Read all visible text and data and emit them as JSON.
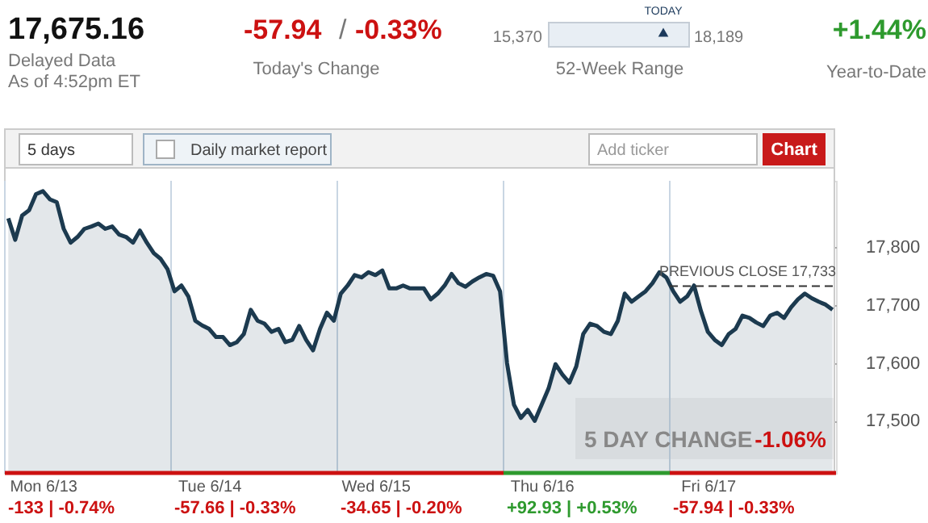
{
  "chart_data": {
    "type": "area",
    "categories": [
      null,
      null,
      null,
      null,
      null,
      "Mon 6/13",
      null,
      null,
      null,
      null,
      null,
      null,
      null,
      null,
      null,
      null,
      null,
      null,
      null,
      null,
      null,
      null,
      null,
      null,
      null,
      null,
      null,
      null,
      null,
      "Tue 6/14",
      null,
      null,
      null,
      null,
      null,
      null,
      null,
      null,
      null,
      null,
      null,
      null,
      null,
      null,
      null,
      null,
      null,
      null,
      null,
      null,
      null,
      null,
      null,
      "Wed 6/15",
      null,
      null,
      null,
      null,
      null,
      null,
      null,
      null,
      null,
      null,
      null,
      null,
      null,
      null,
      null,
      null,
      null,
      null,
      null,
      null,
      null,
      null,
      null,
      "Thu 6/16",
      null,
      null,
      null,
      null,
      null,
      null,
      null,
      null,
      null,
      null,
      null,
      null,
      null,
      null,
      null,
      null,
      null,
      null,
      null,
      null,
      null,
      null,
      null,
      "Fri 6/17",
      null,
      null,
      null,
      null,
      null,
      null,
      null,
      null,
      null,
      null,
      null,
      null,
      null,
      null,
      null,
      null,
      null,
      null
    ],
    "series": [
      {
        "color": "#1c3a4f",
        "values": [
          17850,
          17813,
          17855,
          17864,
          17892,
          17897,
          17883,
          17878,
          17832,
          17808,
          17818,
          17832,
          17836,
          17841,
          17832,
          17836,
          17822,
          17818,
          17808,
          17829,
          17808,
          17790,
          17780,
          17762,
          17724,
          17734,
          17715,
          17673,
          17665,
          17659,
          17645,
          17645,
          17631,
          17636,
          17650,
          17692,
          17673,
          17668,
          17654,
          17659,
          17636,
          17640,
          17664,
          17640,
          17622,
          17659,
          17687,
          17673,
          17720,
          17734,
          17752,
          17748,
          17757,
          17752,
          17760,
          17729,
          17729,
          17734,
          17729,
          17729,
          17729,
          17710,
          17720,
          17734,
          17754,
          17738,
          17732,
          17741,
          17748,
          17754,
          17751,
          17724,
          17600,
          17528,
          17505,
          17519,
          17500,
          17528,
          17556,
          17598,
          17580,
          17566,
          17594,
          17650,
          17668,
          17664,
          17654,
          17650,
          17673,
          17720,
          17706,
          17715,
          17724,
          17738,
          17757,
          17748,
          17724,
          17706,
          17715,
          17734,
          17690,
          17654,
          17640,
          17631,
          17650,
          17659,
          17682,
          17678,
          17670,
          17664,
          17682,
          17687,
          17678,
          17696,
          17710,
          17720,
          17712,
          17706,
          17701,
          17692
        ]
      }
    ],
    "ylim": [
      17410,
      17915
    ],
    "yticks": [
      {
        "value": 17500,
        "label": "17,500"
      },
      {
        "value": 17600,
        "label": "17,600"
      },
      {
        "value": 17700,
        "label": "17,700"
      },
      {
        "value": 17800,
        "label": "17,800"
      }
    ],
    "grid": true,
    "line_style": "solid",
    "marker": "none",
    "ref_lines": [
      {
        "axis": "y",
        "value": 17733,
        "label": "PREVIOUS CLOSE 17,733",
        "line_style": "dashed",
        "color": "#333333"
      }
    ],
    "annotations": [
      "17,675.16",
      "Delayed Data",
      "As of 4:52pm ET",
      "-57.94",
      "/",
      "-0.33%",
      "Today's Change",
      "15,370",
      "18,189",
      "TODAY",
      "52-Week Range",
      "+1.44%",
      "Year-to-Date",
      "5 days",
      "Daily market report",
      "Add ticker",
      "Chart",
      "5 DAY CHANGE",
      "-1.06%",
      "-133 | -0.74%",
      "-57.66 | -0.33%",
      "-34.65 | -0.20%",
      "+92.93 | +0.53%",
      "-57.94 | -0.33%"
    ]
  }
}
